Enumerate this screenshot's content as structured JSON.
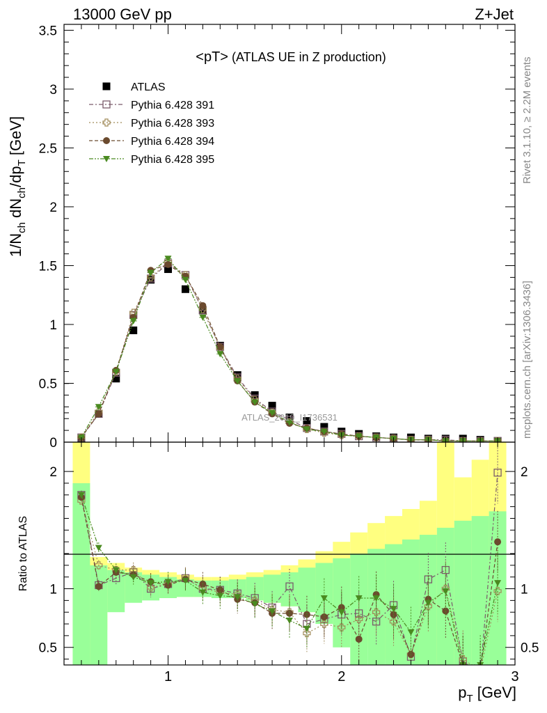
{
  "header": {
    "left": "13000 GeV pp",
    "right": "Z+Jet"
  },
  "side_labels": {
    "rivet": "Rivet 3.1.10, ≥ 2.2M events",
    "mcplots": "mcplots.cern.ch [arXiv:1306.3436]"
  },
  "watermark": "ATLAS_2019_I1736531",
  "chart_data": [
    {
      "type": "scatter",
      "panel": "main",
      "title_main": "<pT>",
      "title_suffix": " (ATLAS UE in Z production)",
      "ylabel": "1/N_ch dN_ch/dp_T [GeV]",
      "xlim": [
        0.4,
        3.0
      ],
      "ylim": [
        0,
        3.55
      ],
      "yticks": [
        "0",
        "0.5",
        "1",
        "1.5",
        "2",
        "2.5",
        "3",
        "3.5"
      ],
      "legend_position": "top-left",
      "x": [
        0.5,
        0.6,
        0.7,
        0.8,
        0.9,
        1.0,
        1.1,
        1.2,
        1.3,
        1.4,
        1.5,
        1.6,
        1.7,
        1.8,
        1.9,
        2.0,
        2.1,
        2.2,
        2.3,
        2.4,
        2.5,
        2.6,
        2.7,
        2.8,
        2.9
      ],
      "series": [
        {
          "name": "ATLAS",
          "color": "#000000",
          "marker": "square-filled",
          "values": [
            0.02,
            0.24,
            0.54,
            0.95,
            1.38,
            1.47,
            1.3,
            1.12,
            0.82,
            0.57,
            0.4,
            0.31,
            0.21,
            0.18,
            0.13,
            0.09,
            0.07,
            0.05,
            0.04,
            0.04,
            0.03,
            0.03,
            0.03,
            0.02,
            0.01
          ]
        },
        {
          "name": "Pythia 6.428 391",
          "color": "#7a5a6a",
          "marker": "square-open",
          "values": [
            0.04,
            0.24,
            0.59,
            1.08,
            1.39,
            1.52,
            1.42,
            1.12,
            0.81,
            0.55,
            0.37,
            0.26,
            0.19,
            0.12,
            0.09,
            0.07,
            0.05,
            0.04,
            0.03,
            0.02,
            0.02,
            0.02,
            0.01,
            0.01,
            0.01
          ]
        },
        {
          "name": "Pythia 6.428 393",
          "color": "#a08a58",
          "marker": "cross-open",
          "values": [
            0.04,
            0.26,
            0.6,
            1.1,
            1.4,
            1.53,
            1.42,
            1.13,
            0.8,
            0.54,
            0.36,
            0.25,
            0.17,
            0.11,
            0.08,
            0.06,
            0.05,
            0.04,
            0.03,
            0.02,
            0.02,
            0.01,
            0.01,
            0.01,
            0.01
          ]
        },
        {
          "name": "Pythia 6.428 394",
          "color": "#6b4a2e",
          "marker": "circle-filled",
          "values": [
            0.04,
            0.24,
            0.61,
            1.06,
            1.46,
            1.51,
            1.41,
            1.16,
            0.81,
            0.52,
            0.34,
            0.24,
            0.16,
            0.12,
            0.09,
            0.07,
            0.05,
            0.04,
            0.03,
            0.02,
            0.02,
            0.01,
            0.01,
            0.01,
            0.01
          ]
        },
        {
          "name": "Pythia 6.428 395",
          "color": "#4a8a20",
          "marker": "triangle-down-filled",
          "values": [
            0.04,
            0.3,
            0.6,
            1.03,
            1.44,
            1.56,
            1.38,
            1.06,
            0.75,
            0.52,
            0.34,
            0.25,
            0.17,
            0.11,
            0.09,
            0.06,
            0.05,
            0.04,
            0.03,
            0.02,
            0.02,
            0.01,
            0.01,
            0.01,
            0.01
          ]
        }
      ]
    },
    {
      "type": "scatter",
      "panel": "ratio",
      "ylabel": "Ratio to ATLAS",
      "xlabel": "p_T [GeV]",
      "xlim": [
        0.4,
        3.0
      ],
      "ylim": [
        0.35,
        2.25
      ],
      "xticks": [
        "1",
        "2",
        "3"
      ],
      "yticks": [
        "0.5",
        "1",
        "2"
      ],
      "band_edges": [
        0.45,
        0.55,
        0.65,
        0.75,
        0.85,
        0.95,
        1.05,
        1.15,
        1.25,
        1.35,
        1.45,
        1.55,
        1.65,
        1.75,
        1.85,
        1.95,
        2.05,
        2.15,
        2.25,
        2.35,
        2.45,
        2.55,
        2.65,
        2.75,
        2.85,
        2.95
      ],
      "band_yellow": {
        "color": "#ffff80",
        "lo": [
          0.35,
          0.65,
          0.85,
          0.9,
          0.92,
          0.93,
          0.93,
          0.93,
          0.92,
          0.92,
          0.9,
          0.88,
          0.85,
          0.8,
          0.75,
          0.68,
          0.6,
          0.5,
          0.4,
          0.35,
          0.35,
          0.35,
          0.35,
          0.35,
          0.35
        ],
        "hi": [
          2.25,
          1.27,
          1.22,
          1.18,
          1.16,
          1.14,
          1.12,
          1.1,
          1.1,
          1.12,
          1.14,
          1.16,
          1.2,
          1.25,
          1.32,
          1.4,
          1.48,
          1.56,
          1.62,
          1.68,
          1.75,
          2.25,
          1.95,
          2.1,
          2.25
        ]
      },
      "band_green": {
        "color": "#99ff99",
        "lo": [
          0.35,
          0.35,
          0.8,
          0.88,
          0.9,
          0.92,
          0.93,
          0.93,
          0.92,
          0.92,
          0.9,
          0.88,
          0.85,
          0.8,
          0.7,
          0.5,
          0.35,
          0.35,
          0.35,
          0.35,
          0.35,
          0.35,
          0.35,
          0.35,
          0.35
        ],
        "hi": [
          1.9,
          1.2,
          1.16,
          1.14,
          1.12,
          1.1,
          1.08,
          1.07,
          1.07,
          1.08,
          1.1,
          1.12,
          1.14,
          1.18,
          1.22,
          1.26,
          1.3,
          1.34,
          1.38,
          1.42,
          1.46,
          1.52,
          1.58,
          1.62,
          1.66
        ]
      },
      "x": [
        0.5,
        0.6,
        0.7,
        0.8,
        0.9,
        1.0,
        1.1,
        1.2,
        1.3,
        1.4,
        1.5,
        1.6,
        1.7,
        1.8,
        1.9,
        2.0,
        2.1,
        2.2,
        2.3,
        2.4,
        2.5,
        2.6,
        2.7,
        2.8,
        2.9
      ],
      "series": [
        {
          "name": "Pythia 6.428 391",
          "color": "#7a5a6a",
          "marker": "square-open",
          "values": [
            1.8,
            1.03,
            1.09,
            1.14,
            1.0,
            1.04,
            1.09,
            1.0,
            0.99,
            0.96,
            0.92,
            0.84,
            1.02,
            0.7,
            0.74,
            0.78,
            0.79,
            0.72,
            0.86,
            0.42,
            1.08,
            1.16,
            0.38,
            0.28,
            1.99
          ]
        },
        {
          "name": "Pythia 6.428 393",
          "color": "#a08a58",
          "marker": "cross-open",
          "values": [
            1.75,
            1.2,
            1.16,
            1.16,
            1.01,
            1.04,
            1.09,
            1.0,
            0.97,
            0.95,
            0.9,
            0.82,
            0.8,
            0.62,
            0.7,
            0.67,
            0.74,
            0.8,
            0.72,
            0.44,
            0.85,
            1.0,
            0.4,
            0.3,
            0.98
          ]
        },
        {
          "name": "Pythia 6.428 394",
          "color": "#6b4a2e",
          "marker": "circle-filled",
          "values": [
            1.78,
            1.02,
            1.14,
            1.12,
            1.06,
            1.03,
            1.08,
            1.04,
            0.99,
            0.91,
            0.88,
            0.79,
            0.79,
            0.78,
            0.76,
            0.84,
            0.57,
            0.95,
            0.78,
            0.44,
            0.91,
            0.81,
            0.35,
            0.3,
            1.4
          ]
        },
        {
          "name": "Pythia 6.428 395",
          "color": "#4a8a20",
          "marker": "triangle-down-filled",
          "values": [
            1.8,
            1.35,
            1.16,
            1.1,
            1.05,
            1.06,
            1.07,
            0.97,
            0.94,
            0.93,
            0.87,
            0.81,
            0.73,
            0.66,
            0.92,
            0.8,
            0.92,
            0.92,
            0.83,
            0.63,
            0.88,
            0.98,
            0.35,
            0.35,
            1.05
          ]
        }
      ]
    }
  ]
}
